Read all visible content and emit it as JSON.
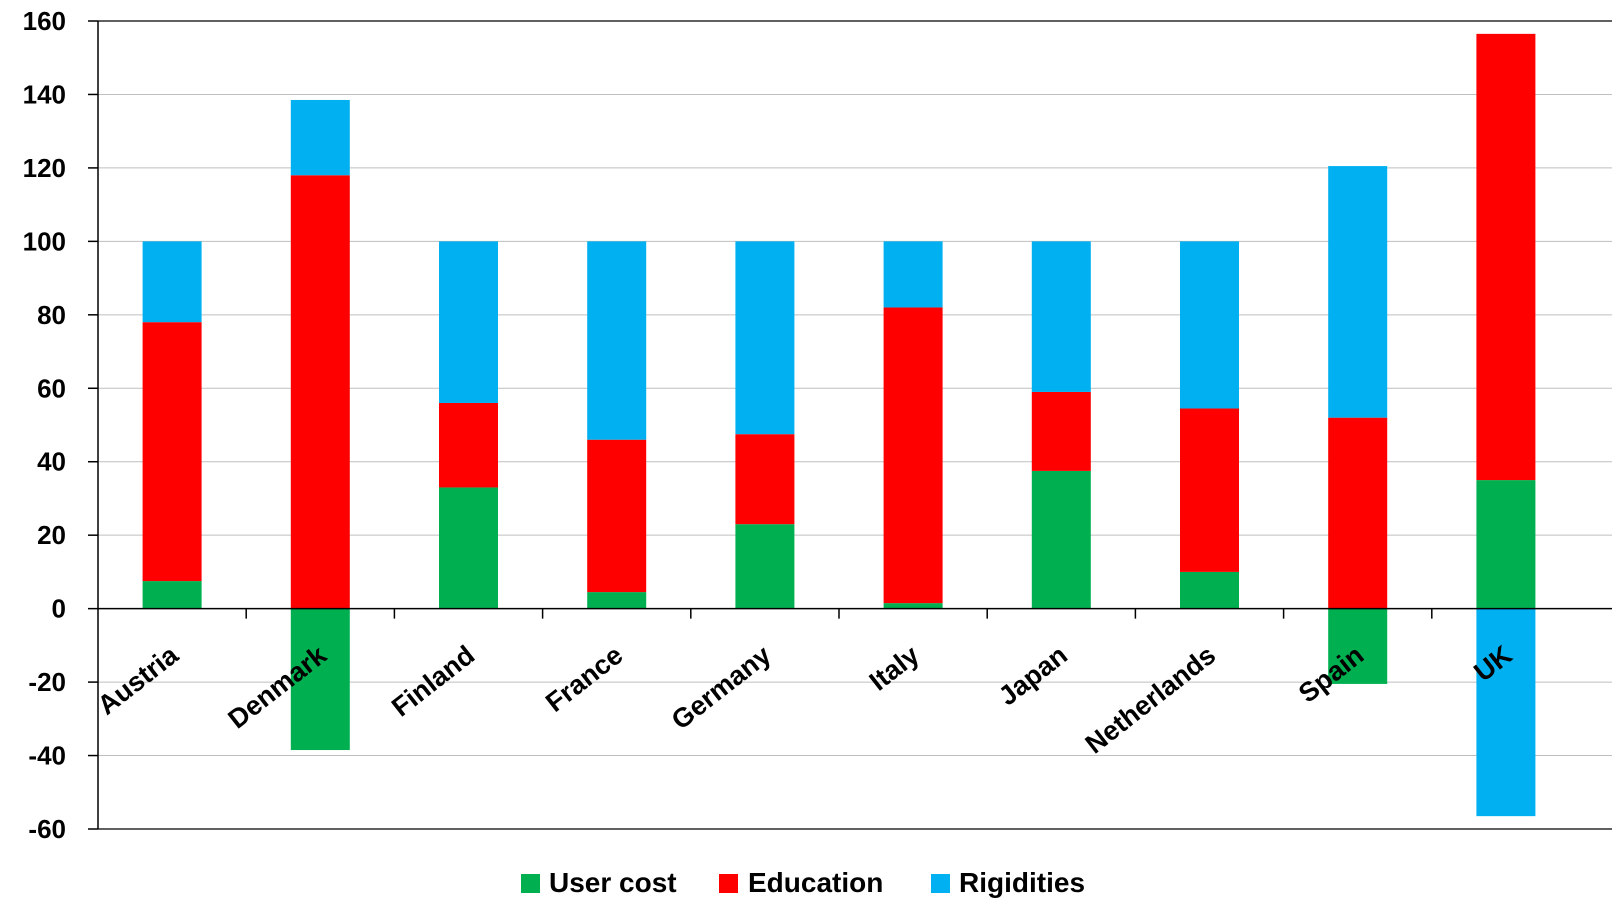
{
  "chart_data": {
    "type": "bar",
    "stacked": true,
    "categories": [
      "Austria",
      "Denmark",
      "Finland",
      "France",
      "Germany",
      "Italy",
      "Japan",
      "Netherlands",
      "Spain",
      "UK"
    ],
    "series": [
      {
        "name": "User cost",
        "color": "#00b050",
        "values": [
          7.5,
          -38.5,
          33,
          4.5,
          23,
          1.5,
          37.5,
          10,
          -20.5,
          35
        ]
      },
      {
        "name": "Education",
        "color": "#ff0000",
        "values": [
          70.5,
          118,
          23,
          41.5,
          24.5,
          80.5,
          21.5,
          44.5,
          52,
          121.5
        ]
      },
      {
        "name": "Rigidities",
        "color": "#00b0f0",
        "values": [
          22,
          20.5,
          44,
          54,
          52.5,
          18,
          41,
          45.5,
          68.5,
          -56.5
        ]
      }
    ],
    "ylim": [
      -60,
      160
    ],
    "yticks": [
      -60,
      -40,
      -20,
      0,
      20,
      40,
      60,
      80,
      100,
      120,
      140,
      160
    ],
    "grid": true,
    "legend_position": "bottom-center",
    "title": "",
    "xlabel": "",
    "ylabel": ""
  }
}
